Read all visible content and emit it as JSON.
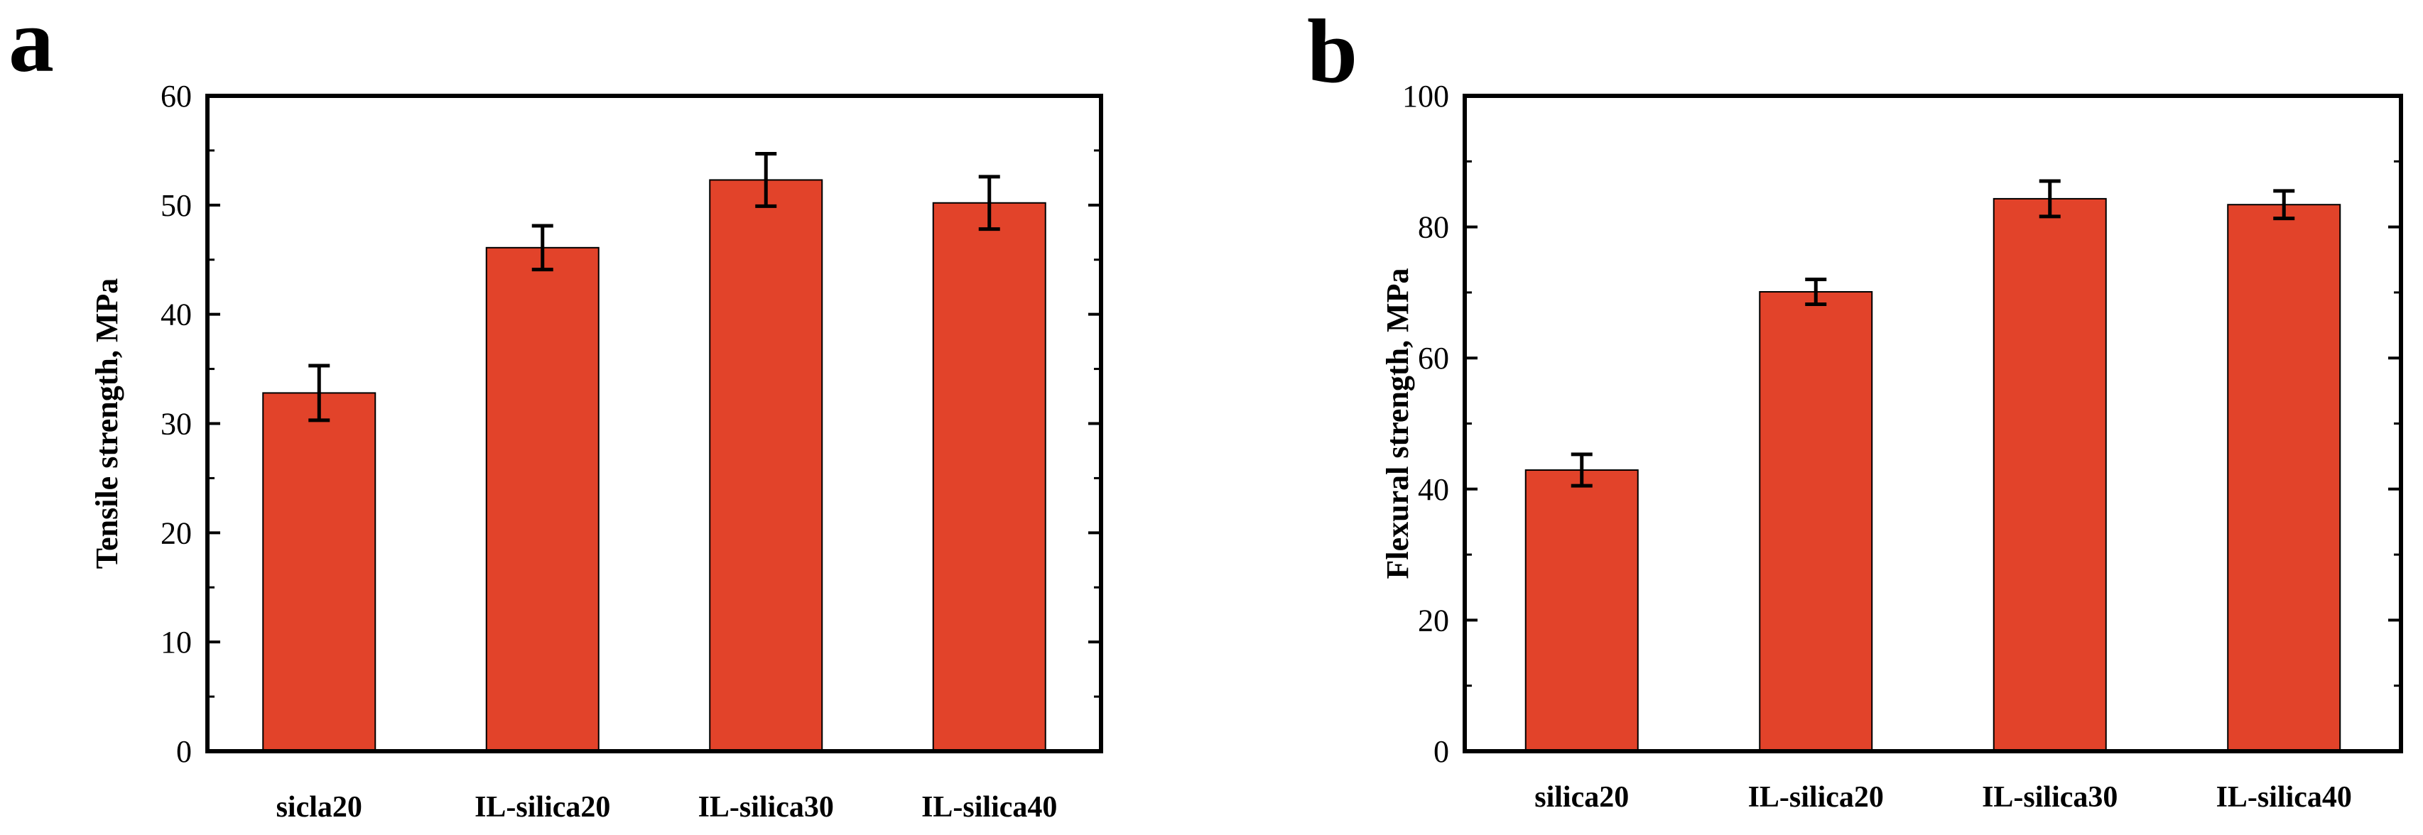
{
  "chart_data": [
    {
      "type": "bar",
      "panel_label": "a",
      "title": "",
      "xlabel": "",
      "ylabel": "Tensile strength, MPa",
      "categories": [
        "sicla20",
        "IL-silica20",
        "IL-silica30",
        "IL-silica40"
      ],
      "values": [
        32.8,
        46.1,
        52.3,
        50.2
      ],
      "errors": [
        2.5,
        2.0,
        2.4,
        2.4
      ],
      "ylim": [
        0,
        60
      ],
      "yticks": [
        0,
        10,
        20,
        30,
        40,
        50,
        60
      ],
      "bar_color": "#e2432a",
      "grid": false
    },
    {
      "type": "bar",
      "panel_label": "b",
      "title": "",
      "xlabel": "",
      "ylabel": "Flexural strength, MPa",
      "categories": [
        "silica20",
        "IL-silica20",
        "IL-silica30",
        "IL-silica40"
      ],
      "values": [
        42.9,
        70.1,
        84.3,
        83.4
      ],
      "errors": [
        2.4,
        1.9,
        2.7,
        2.1
      ],
      "ylim": [
        0,
        100
      ],
      "yticks": [
        0,
        20,
        40,
        60,
        80,
        100
      ],
      "bar_color": "#e2432a",
      "grid": false
    }
  ]
}
